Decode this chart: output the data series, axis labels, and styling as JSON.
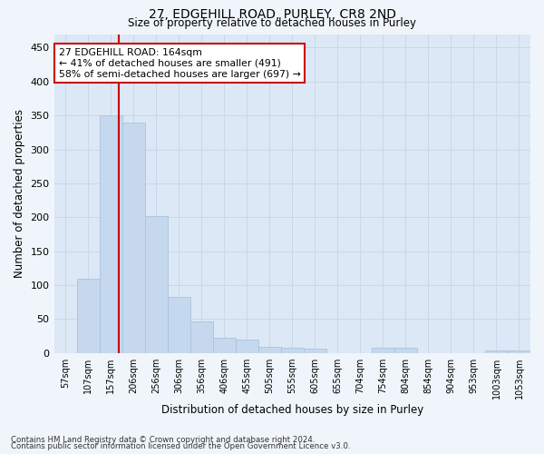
{
  "title1": "27, EDGEHILL ROAD, PURLEY, CR8 2ND",
  "title2": "Size of property relative to detached houses in Purley",
  "xlabel": "Distribution of detached houses by size in Purley",
  "ylabel": "Number of detached properties",
  "footnote1": "Contains HM Land Registry data © Crown copyright and database right 2024.",
  "footnote2": "Contains public sector information licensed under the Open Government Licence v3.0.",
  "bar_labels": [
    "57sqm",
    "107sqm",
    "157sqm",
    "206sqm",
    "256sqm",
    "306sqm",
    "356sqm",
    "406sqm",
    "455sqm",
    "505sqm",
    "555sqm",
    "605sqm",
    "655sqm",
    "704sqm",
    "754sqm",
    "804sqm",
    "854sqm",
    "904sqm",
    "953sqm",
    "1003sqm",
    "1053sqm"
  ],
  "bar_values": [
    0,
    110,
    350,
    340,
    202,
    83,
    46,
    22,
    20,
    9,
    7,
    6,
    0,
    0,
    8,
    7,
    0,
    0,
    0,
    3,
    3
  ],
  "bar_color": "#c5d8ed",
  "bar_edge_color": "#a8c4de",
  "grid_color": "#c8d8ea",
  "background_color": "#dce8f5",
  "fig_background": "#f0f5fb",
  "vline_x": 2.34,
  "vline_color": "#cc0000",
  "annotation_text": "27 EDGEHILL ROAD: 164sqm\n← 41% of detached houses are smaller (491)\n58% of semi-detached houses are larger (697) →",
  "annotation_box_color": "#ffffff",
  "annotation_box_edge": "#cc0000",
  "ylim": [
    0,
    470
  ],
  "yticks": [
    0,
    50,
    100,
    150,
    200,
    250,
    300,
    350,
    400,
    450
  ]
}
